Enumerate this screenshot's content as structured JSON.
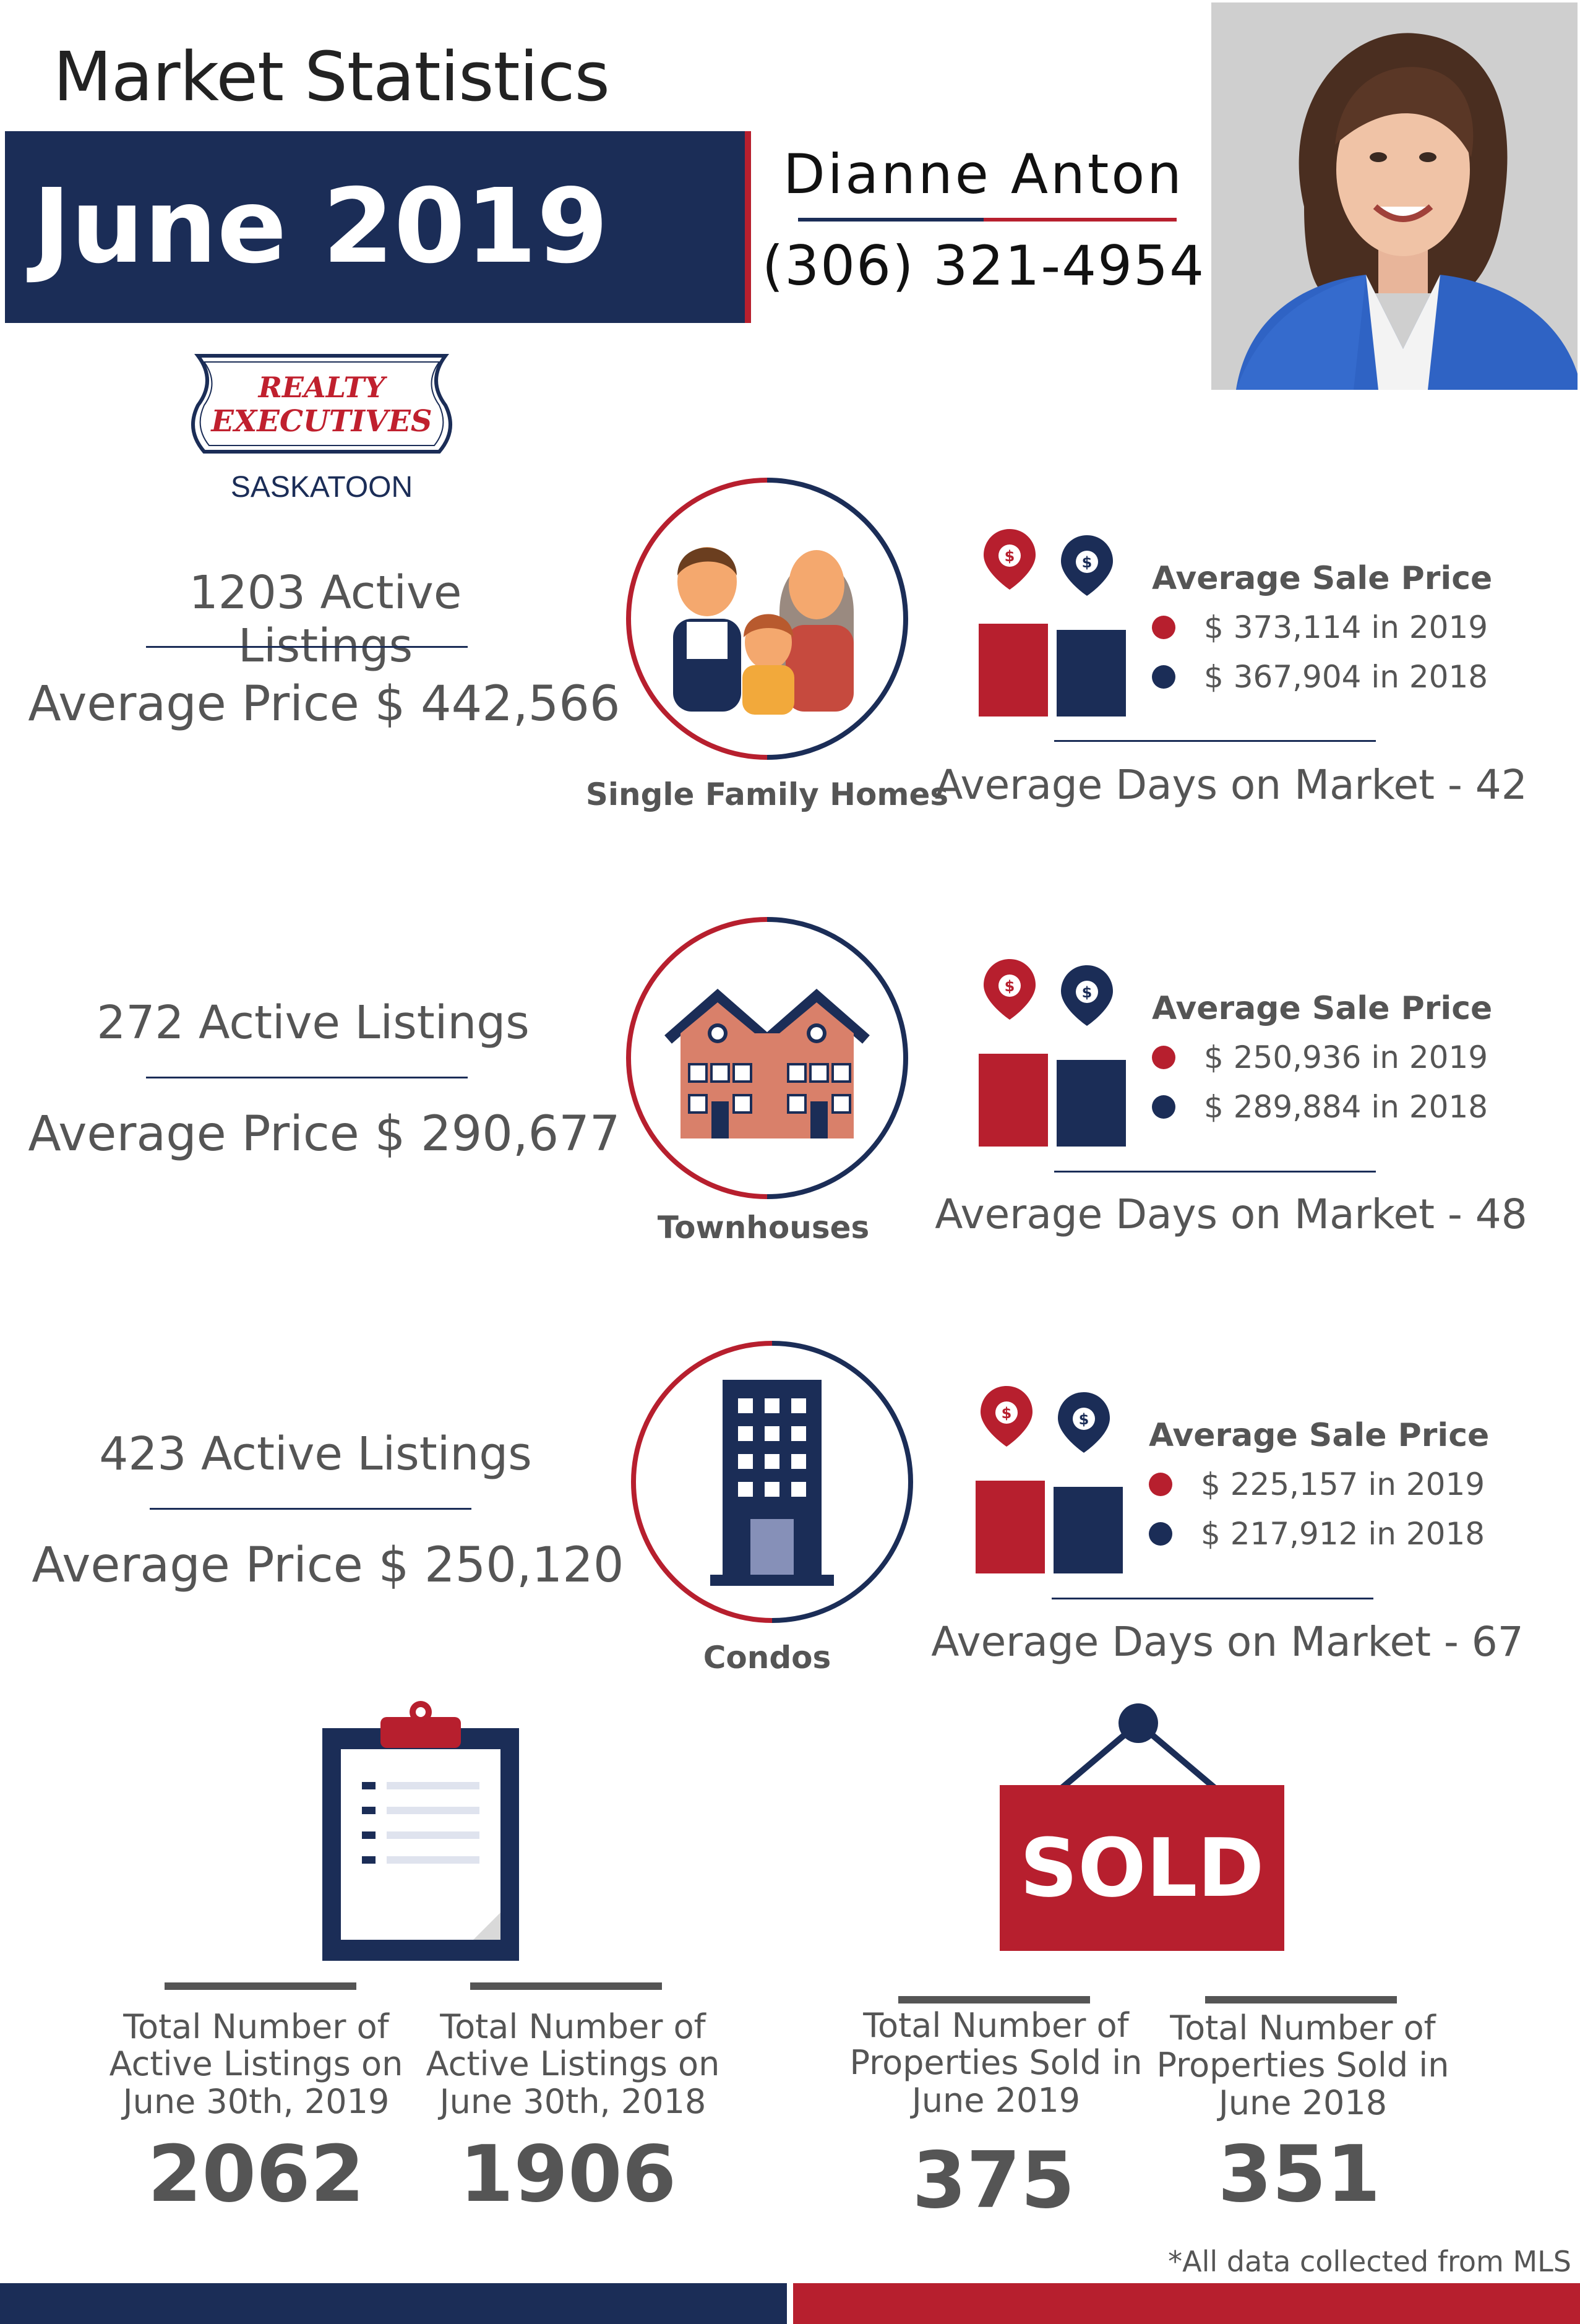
{
  "header": {
    "title": "Market Statistics",
    "month": "June 2019",
    "agent_name": "Dianne Anton",
    "agent_phone": "(306) 321-4954"
  },
  "logo": {
    "line1": "REALTY",
    "line2": "EXECUTIVES",
    "city": "SASKATOON"
  },
  "categories": [
    {
      "label": "Single Family Homes",
      "active_listings": "1203 Active Listings",
      "average_price": "Average Price $ 442,566",
      "sale_price_title": "Average Sale Price",
      "sale_price_2019": "$ 373,114 in 2019",
      "sale_price_2018": "$ 367,904 in 2018",
      "days_on_market": "Average Days on Market - 42",
      "icon": "family-icon"
    },
    {
      "label": "Townhouses",
      "active_listings": "272 Active Listings",
      "average_price": "Average Price $ 290,677",
      "sale_price_title": "Average Sale Price",
      "sale_price_2019": "$ 250,936 in 2019",
      "sale_price_2018": "$ 289,884 in 2018",
      "days_on_market": "Average Days on Market - 48",
      "icon": "townhouse-icon"
    },
    {
      "label": "Condos",
      "active_listings": "423 Active Listings",
      "average_price": "Average Price $ 250,120",
      "sale_price_title": "Average Sale Price",
      "sale_price_2019": "$ 225,157 in 2019",
      "sale_price_2018": "$ 217,912 in 2018",
      "days_on_market": "Average Days on Market - 67",
      "icon": "condo-building-icon"
    }
  ],
  "totals": {
    "active_2019_label": "Total Number of Active Listings on June 30th, 2019",
    "active_2019_value": "2062",
    "active_2018_label": "Total Number of Active Listings on June 30th, 2018",
    "active_2018_value": "1906",
    "sold_2019_label": "Total Number of Properties Sold in June 2019",
    "sold_2019_value": "375",
    "sold_2018_label": "Total Number of Properties Sold in June 2018",
    "sold_2018_value": "351",
    "sold_sign_text": "SOLD"
  },
  "footnote": "*All data collected from MLS",
  "colors": {
    "navy": "#1b2d57",
    "red": "#b71f2e",
    "gray_text": "#555555"
  }
}
